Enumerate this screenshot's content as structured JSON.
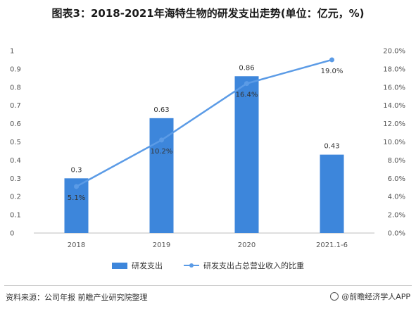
{
  "title": "图表3：2018-2021年海特生物的研发支出走势(单位：亿元，%)",
  "chart_data": {
    "type": "bar+line",
    "categories": [
      "2018",
      "2019",
      "2020",
      "2021.1-6"
    ],
    "series": [
      {
        "name": "研发支出",
        "type": "bar",
        "axis": "left",
        "color": "#3d86db",
        "values": [
          0.3,
          0.63,
          0.86,
          0.43
        ],
        "labels": [
          "0.3",
          "0.63",
          "0.86",
          "0.43"
        ]
      },
      {
        "name": "研发支出占总营业收入的比重",
        "type": "line",
        "axis": "right",
        "color": "#5b9be6",
        "values": [
          5.1,
          10.2,
          16.4,
          19.0
        ],
        "labels": [
          "5.1%",
          "10.2%",
          "16.4%",
          "19.0%"
        ]
      }
    ],
    "y_left": {
      "min": 0,
      "max": 1,
      "ticks": [
        0,
        0.1,
        0.2,
        0.3,
        0.4,
        0.5,
        0.6,
        0.7,
        0.8,
        0.9,
        1
      ],
      "tick_labels": [
        "0",
        "0.1",
        "0.2",
        "0.3",
        "0.4",
        "0.5",
        "0.6",
        "0.7",
        "0.8",
        "0.9",
        "1"
      ]
    },
    "y_right": {
      "min": 0,
      "max": 20,
      "ticks": [
        0,
        2,
        4,
        6,
        8,
        10,
        12,
        14,
        16,
        18,
        20
      ],
      "tick_labels": [
        "0.0%",
        "2.0%",
        "4.0%",
        "6.0%",
        "8.0%",
        "10.0%",
        "12.0%",
        "14.0%",
        "16.0%",
        "18.0%",
        "20.0%"
      ]
    },
    "grid": false,
    "legend_position": "bottom"
  },
  "source": "资料来源：公司年报 前瞻产业研究院整理",
  "brand": "@前瞻经济学人APP"
}
